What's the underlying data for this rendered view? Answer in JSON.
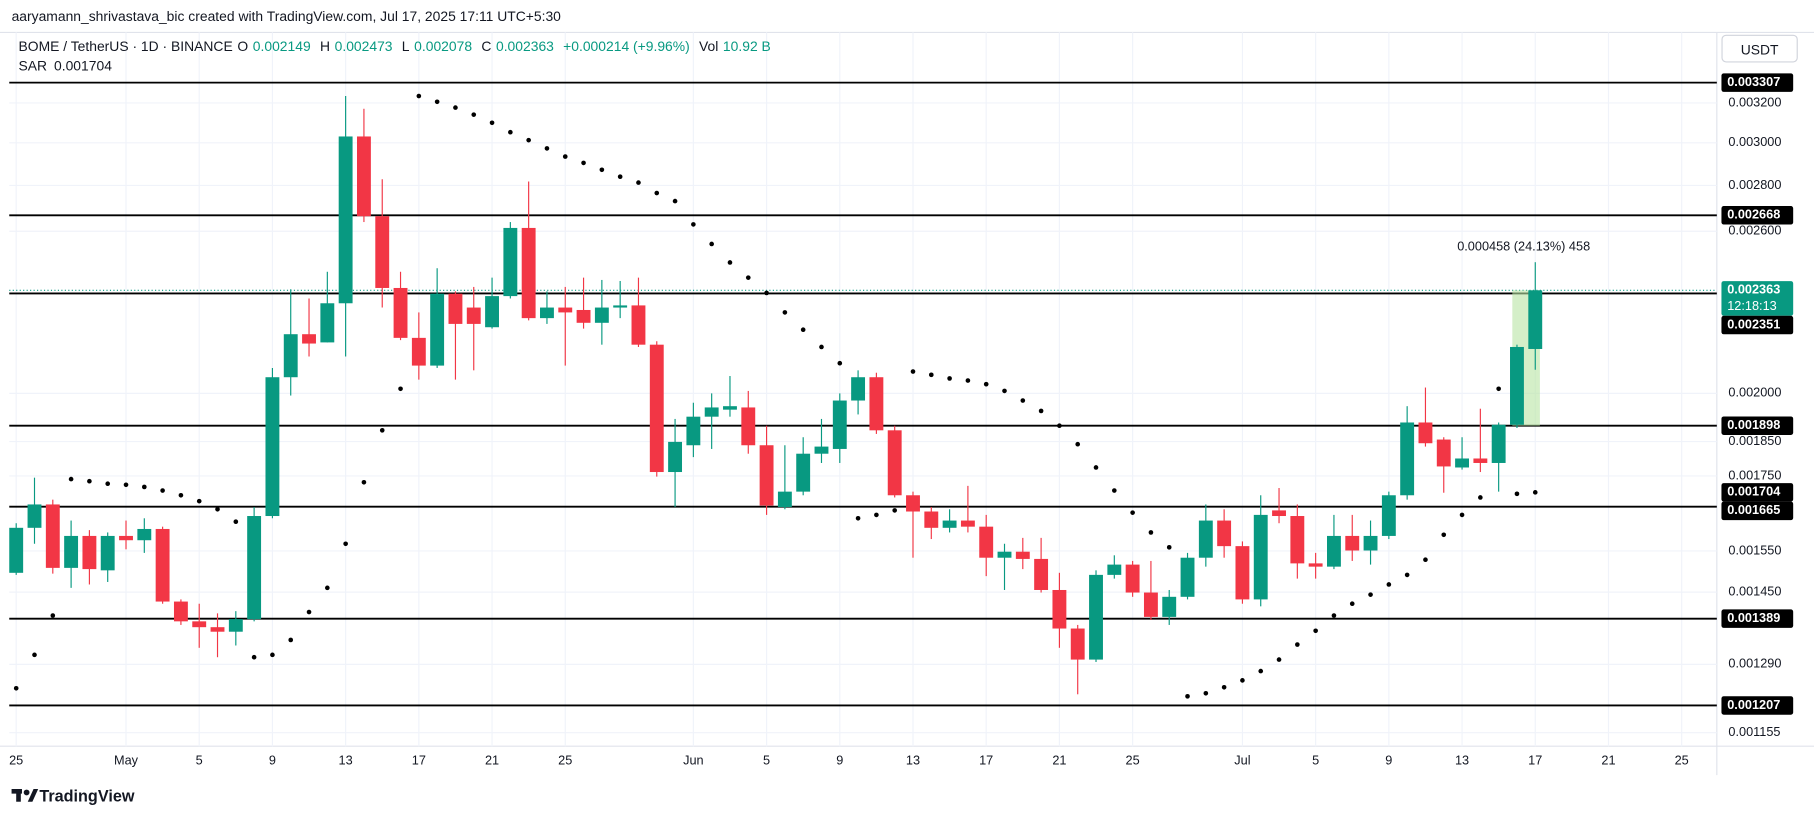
{
  "header": {
    "attribution": "aaryamann_shrivastava_bic created with TradingView.com, Jul 17, 2025 17:11 UTC+5:30"
  },
  "chart_data": {
    "type": "candlestick",
    "ohlc_keys": [
      "O",
      "H",
      "L",
      "C"
    ],
    "change": "+0.000214 (+9.96%)",
    "volume_label": "Vol",
    "volume": "10.92 B",
    "currency_button": "USDT",
    "categories": [
      "25",
      null,
      null,
      null,
      null,
      null,
      "May",
      null,
      null,
      null,
      "5",
      null,
      null,
      null,
      "9",
      null,
      null,
      null,
      "13",
      null,
      null,
      null,
      "17",
      null,
      null,
      null,
      "21",
      null,
      null,
      null,
      "25",
      null,
      null,
      null,
      null,
      null,
      null,
      "Jun",
      null,
      null,
      null,
      "5",
      null,
      null,
      null,
      "9",
      null,
      null,
      null,
      "13",
      null,
      null,
      null,
      "17",
      null,
      null,
      null,
      "21",
      null,
      null,
      null,
      "25",
      null,
      null,
      null,
      null,
      null,
      "Jul",
      null,
      null,
      null,
      "5",
      null,
      null,
      null,
      "9",
      null,
      null,
      null,
      "13",
      null,
      null,
      null,
      "17",
      null,
      null,
      null,
      "21",
      null,
      null,
      null,
      "25"
    ],
    "series": [
      {
        "name": "BOME / TetherUS · 1D · BINANCE",
        "up_color": "#089981",
        "down_color": "#f23645",
        "open": [
          0.001496,
          0.001609,
          0.001671,
          0.001508,
          0.001588,
          0.001502,
          0.001588,
          0.001577,
          0.001606,
          0.001428,
          0.001383,
          0.00137,
          0.00136,
          0.001388,
          0.00164,
          0.002053,
          0.002201,
          0.002172,
          0.002314,
          0.003031,
          0.002664,
          0.002372,
          0.002188,
          0.002092,
          0.00235,
          0.002298,
          0.002226,
          0.002341,
          0.002614,
          0.002259,
          0.002298,
          0.002289,
          0.002242,
          0.002298,
          0.002306,
          0.002164,
          0.001761,
          0.001839,
          0.001926,
          0.001948,
          0.001955,
          0.001839,
          0.001664,
          0.001706,
          0.001814,
          0.001828,
          0.001977,
          0.002053,
          0.001884,
          0.001696,
          0.001652,
          0.001609,
          0.001628,
          0.001612,
          0.001533,
          0.001548,
          0.00153,
          0.001455,
          0.001367,
          0.0013,
          0.001491,
          0.001516,
          0.001449,
          0.001393,
          0.001439,
          0.001533,
          0.001628,
          0.001562,
          0.001433,
          0.001655,
          0.00164,
          0.001519,
          0.001511,
          0.001588,
          0.001551,
          0.001588,
          0.001696,
          0.001908,
          0.001856,
          0.001774,
          0.0018,
          0.001787,
          0.001901,
          0.002149,
          null,
          null,
          null,
          null,
          null,
          null,
          null,
          null
        ],
        "high": [
          0.001621,
          0.001745,
          0.001684,
          0.001628,
          0.001603,
          0.001597,
          0.001628,
          0.001634,
          0.001612,
          0.001433,
          0.001423,
          0.001401,
          0.001406,
          0.001664,
          0.002084,
          0.002367,
          0.002332,
          0.002435,
          0.003236,
          0.00317,
          0.002828,
          0.002435,
          0.00228,
          0.002449,
          0.002359,
          0.002376,
          0.002412,
          0.002639,
          0.002818,
          0.002359,
          0.002376,
          0.002412,
          0.002403,
          0.002399,
          0.002412,
          0.002176,
          0.001919,
          0.00197,
          0.002,
          0.002057,
          0.002008,
          0.001898,
          0.001839,
          0.001863,
          0.001919,
          0.002,
          0.002076,
          0.002068,
          0.001898,
          0.001706,
          0.001664,
          0.001658,
          0.001722,
          0.001643,
          0.001568,
          0.001583,
          0.001583,
          0.001496,
          0.001375,
          0.001502,
          0.001539,
          0.001525,
          0.001525,
          0.001455,
          0.001545,
          0.001671,
          0.001658,
          0.001574,
          0.001696,
          0.001716,
          0.001671,
          0.001545,
          0.001643,
          0.001643,
          0.001628,
          0.001706,
          0.001959,
          0.002019,
          0.001863,
          0.001863,
          0.001951,
          0.001908,
          0.002164,
          0.002473,
          null,
          null,
          null,
          null,
          null,
          null,
          null,
          null
        ],
        "low": [
          0.001491,
          0.001568,
          0.001494,
          0.00146,
          0.001468,
          0.001474,
          0.001554,
          0.001545,
          0.001423,
          0.001375,
          0.001325,
          0.001305,
          0.00133,
          0.001383,
          0.001634,
          0.001993,
          0.002123,
          0.002172,
          0.002123,
          0.002639,
          0.002298,
          0.00218,
          0.002045,
          0.002084,
          0.002045,
          0.002076,
          0.002221,
          0.002332,
          0.002251,
          0.002238,
          0.002092,
          0.002221,
          0.002164,
          0.002259,
          0.002156,
          0.001748,
          0.001664,
          0.001804,
          0.001828,
          0.001926,
          0.001814,
          0.001643,
          0.001658,
          0.001696,
          0.001787,
          0.001787,
          0.001933,
          0.001873,
          0.00169,
          0.001533,
          0.00158,
          0.001597,
          0.001597,
          0.001488,
          0.001455,
          0.001505,
          0.001449,
          0.001325,
          0.001229,
          0.001295,
          0.001482,
          0.001439,
          0.001386,
          0.001375,
          0.001433,
          0.001511,
          0.001533,
          0.001423,
          0.001417,
          0.001621,
          0.001482,
          0.001482,
          0.001505,
          0.001525,
          0.001516,
          0.00158,
          0.001684,
          0.001835,
          0.001703,
          0.001768,
          0.001761,
          0.001706,
          0.001891,
          0.002078,
          null,
          null,
          null,
          null,
          null,
          null,
          null,
          null
        ],
        "close": [
          0.001609,
          0.001671,
          0.001508,
          0.001588,
          0.001505,
          0.001588,
          0.001577,
          0.001606,
          0.001428,
          0.001383,
          0.00137,
          0.00136,
          0.001388,
          0.00164,
          0.002053,
          0.002201,
          0.002168,
          0.002314,
          0.003031,
          0.002664,
          0.002372,
          0.002188,
          0.002092,
          0.00235,
          0.002238,
          0.002238,
          0.002341,
          0.002614,
          0.002259,
          0.002298,
          0.00228,
          0.002242,
          0.002298,
          0.002306,
          0.002164,
          0.001761,
          0.001849,
          0.001926,
          0.001955,
          0.001959,
          0.001839,
          0.001668,
          0.001706,
          0.001814,
          0.001835,
          0.001977,
          0.002053,
          0.001884,
          0.001696,
          0.001652,
          0.001609,
          0.001628,
          0.001612,
          0.001533,
          0.001548,
          0.00153,
          0.001455,
          0.001367,
          0.0013,
          0.001491,
          0.001516,
          0.001449,
          0.001393,
          0.001439,
          0.001533,
          0.001628,
          0.001562,
          0.001433,
          0.001643,
          0.00164,
          0.001519,
          0.001511,
          0.001588,
          0.001551,
          0.001588,
          0.001696,
          0.001908,
          0.001845,
          0.001777,
          0.0018,
          0.001787,
          0.001901,
          0.002156,
          0.002363,
          null,
          null,
          null,
          null,
          null,
          null,
          null,
          null
        ]
      },
      {
        "name": "SAR",
        "color": "#000000",
        "values": [
          0.001241,
          0.00131,
          0.001396,
          0.001741,
          0.001735,
          0.001728,
          0.001725,
          0.001719,
          0.001709,
          0.001696,
          0.00168,
          0.001658,
          0.001625,
          0.001305,
          0.00131,
          0.001342,
          0.001404,
          0.00146,
          0.001568,
          0.001732,
          0.001884,
          0.002015,
          0.003236,
          0.003206,
          0.003176,
          0.00314,
          0.003099,
          0.003052,
          0.003013,
          0.002973,
          0.002934,
          0.002904,
          0.002872,
          0.00284,
          0.002813,
          0.002766,
          0.00273,
          0.002629,
          0.002547,
          0.002472,
          0.002412,
          0.002353,
          0.00228,
          0.002217,
          0.002156,
          0.0021,
          0.001634,
          0.001643,
          0.001655,
          0.002072,
          0.002061,
          0.002049,
          0.002042,
          0.00203,
          0.002008,
          0.001977,
          0.001944,
          0.001898,
          0.001842,
          0.001774,
          0.001709,
          0.001649,
          0.001597,
          0.001559,
          0.001225,
          0.001231,
          0.001243,
          0.001257,
          0.001276,
          0.0013,
          0.001332,
          0.001362,
          0.001396,
          0.001423,
          0.001444,
          0.001468,
          0.001491,
          0.001528,
          0.001591,
          0.001643,
          0.00169,
          0.002015,
          0.0017,
          0.001704,
          null,
          null,
          null,
          null,
          null,
          null,
          null,
          null
        ]
      }
    ],
    "ylim": [
      0.00113,
      0.003587
    ],
    "log_scale": true,
    "grid": true,
    "yticks": [
      {
        "value": 0.0032,
        "label": "0.003200"
      },
      {
        "value": 0.003,
        "label": "0.003000"
      },
      {
        "value": 0.0028,
        "label": "0.002800"
      },
      {
        "value": 0.0026,
        "label": "0.002600"
      },
      {
        "value": 0.002,
        "label": "0.002000"
      },
      {
        "value": 0.00185,
        "label": "0.001850"
      },
      {
        "value": 0.00175,
        "label": "0.001750"
      },
      {
        "value": 0.00155,
        "label": "0.001550"
      },
      {
        "value": 0.00145,
        "label": "0.001450"
      },
      {
        "value": 0.00129,
        "label": "0.001290"
      },
      0.001155
    ],
    "levels": [
      0.003307,
      0.002668,
      0.002351,
      0.001898,
      0.001665,
      0.001389,
      0.001207
    ],
    "level_color": "#000000",
    "last_price_color": "#089981",
    "countdown": "12:18:13",
    "measure_label": "0.000458 (24.13%) 458",
    "measure_color": "#b7e4a3"
  },
  "footer": {
    "brand": "TradingView"
  }
}
